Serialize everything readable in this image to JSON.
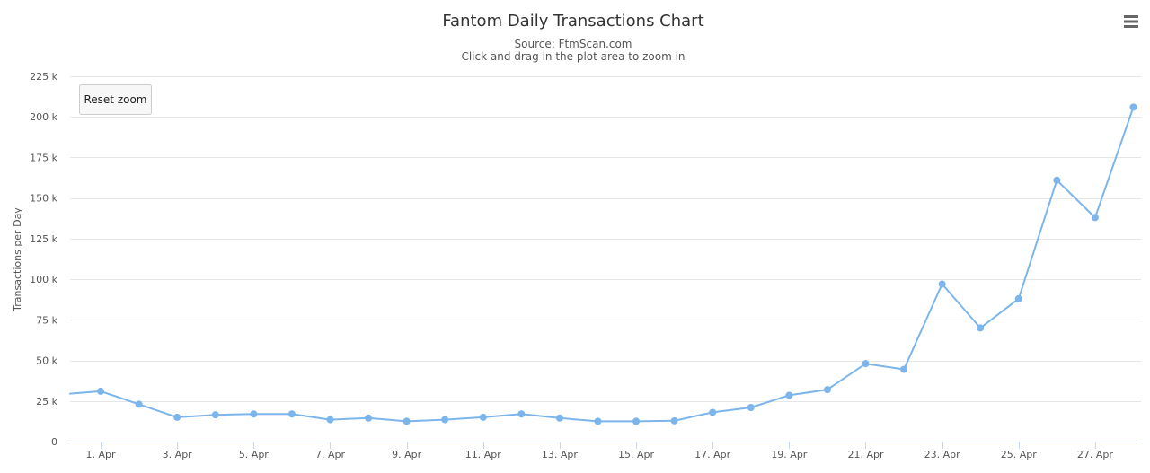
{
  "chart_data": {
    "type": "line",
    "title": "Fantom Daily Transactions Chart",
    "subtitle_lines": [
      "Source: FtmScan.com",
      "Click and drag in the plot area to zoom in"
    ],
    "ylabel": "Transactions per Day",
    "xlabel": "",
    "ylim": [
      0,
      225000
    ],
    "y_ticks": [
      0,
      25000,
      50000,
      75000,
      100000,
      125000,
      150000,
      175000,
      200000,
      225000
    ],
    "y_tick_labels": [
      "0",
      "25 k",
      "50 k",
      "75 k",
      "100 k",
      "125 k",
      "150 k",
      "175 k",
      "200 k",
      "225 k"
    ],
    "x_tick_labels": [
      "1. Apr",
      "3. Apr",
      "5. Apr",
      "7. Apr",
      "9. Apr",
      "11. Apr",
      "13. Apr",
      "15. Apr",
      "17. Apr",
      "19. Apr",
      "21. Apr",
      "23. Apr",
      "25. Apr",
      "27. Apr"
    ],
    "x_tick_days": [
      1,
      3,
      5,
      7,
      9,
      11,
      13,
      15,
      17,
      19,
      21,
      23,
      25,
      27
    ],
    "xlim_days": [
      0.2,
      28.2
    ],
    "grid": true,
    "legend": "none",
    "series": [
      {
        "x_days": [
          1,
          2,
          3,
          4,
          5,
          6,
          7,
          8,
          9,
          10,
          11,
          12,
          13,
          14,
          15,
          16,
          17,
          18,
          19,
          20,
          21,
          22,
          23,
          24,
          25,
          26,
          27,
          28
        ],
        "values": [
          31000,
          23000,
          15000,
          16500,
          17000,
          17000,
          13500,
          14500,
          12500,
          13500,
          15000,
          17000,
          14500,
          12500,
          12500,
          12800,
          18000,
          21000,
          28500,
          32000,
          48000,
          44500,
          97000,
          70000,
          88000,
          161000,
          138000,
          206000
        ],
        "line_start_value": 29500,
        "color": "#7cb5ec"
      }
    ],
    "reset_zoom_label": "Reset zoom",
    "menu_icon": "hamburger-menu-icon",
    "grid_color": "#e6e6e6",
    "axis_color": "#ccd6eb"
  }
}
